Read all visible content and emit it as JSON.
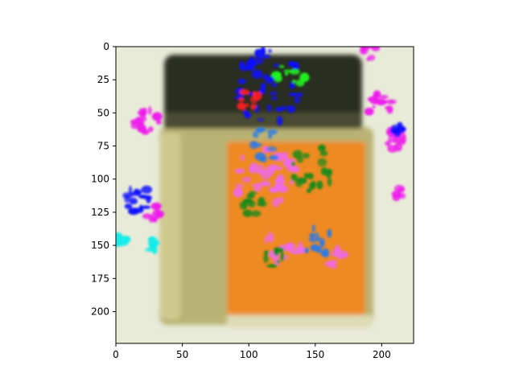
{
  "figure": {
    "subject": "glass jar with dark lid",
    "axes": {
      "x_ticks": [
        0,
        50,
        100,
        150,
        200
      ],
      "y_ticks": [
        0,
        25,
        50,
        75,
        100,
        125,
        150,
        175,
        200
      ],
      "x_range": [
        0,
        224
      ],
      "y_range": [
        224,
        0
      ],
      "frame_color": "#000000"
    },
    "palette": {
      "background": "#e9ebd9",
      "lid": "#2c2e22",
      "jar_body": "#b9b374",
      "jar_left_edge": "#cfc98f",
      "label_orange": "#ef8a22",
      "overlay_magenta": "#ee1cec",
      "overlay_blue": "#1010ff",
      "overlay_cyan": "#12ecea",
      "overlay_green": "#1a8a1a",
      "overlay_pink": "#ee6ae8",
      "overlay_azure": "#2a7ae8"
    }
  }
}
